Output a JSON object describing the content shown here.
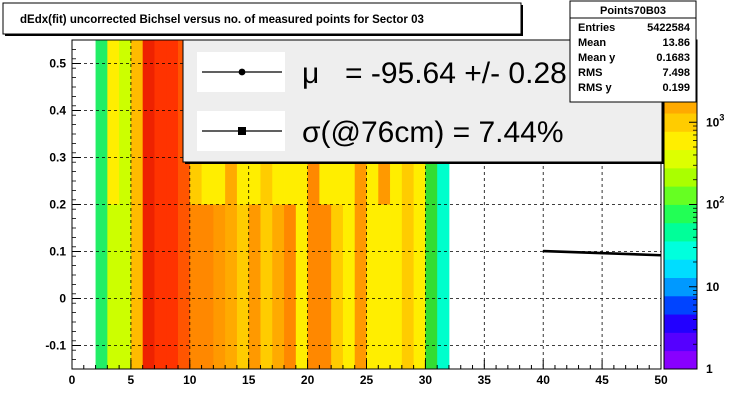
{
  "title": "dEdx(fit) uncorrected Bichsel versus no. of measured points for Sector 03",
  "stats": {
    "name": "Points70B03",
    "rows": [
      {
        "label": "Entries",
        "value": "5422584"
      },
      {
        "label": "Mean",
        "value": "13.86"
      },
      {
        "label": "Mean y",
        "value": "0.1683"
      },
      {
        "label": "RMS",
        "value": "7.498"
      },
      {
        "label": "RMS y",
        "value": "0.199"
      }
    ]
  },
  "legend": {
    "mu_symbol": "μ",
    "mu_text": "= -95.64 +/-  0.28 %",
    "sigma_text": "σ(@76cm) =  7.44%"
  },
  "chart_data": {
    "type": "heatmap",
    "title": "dEdx(fit) uncorrected Bichsel versus no. of measured points for Sector 03",
    "xlabel": "",
    "ylabel": "",
    "xlim": [
      0,
      50
    ],
    "ylim": [
      -0.15,
      0.55
    ],
    "x_ticks": [
      0,
      5,
      10,
      15,
      20,
      25,
      30,
      35,
      40,
      45,
      50
    ],
    "y_ticks": [
      -0.1,
      0,
      0.1,
      0.2,
      0.3,
      0.4,
      0.5
    ],
    "grid": true,
    "z_scale": "log",
    "z_ticks": [
      {
        "base": "1",
        "exp": ""
      },
      {
        "base": "10",
        "exp": ""
      },
      {
        "base": "10",
        "exp": "2"
      },
      {
        "base": "10",
        "exp": "3"
      }
    ],
    "z_range": [
      1,
      10000
    ],
    "x_bin_width": 1,
    "columns": [
      {
        "x": 2,
        "colors": [
          "#22ee66"
        ]
      },
      {
        "x": 3,
        "colors": [
          "#ffee00",
          "#ccff00"
        ]
      },
      {
        "x": 4,
        "colors": [
          "#ccff00"
        ]
      },
      {
        "x": 5,
        "colors": [
          "#ffbb00"
        ]
      },
      {
        "x": 6,
        "colors": [
          "#ee2200"
        ]
      },
      {
        "x": 7,
        "colors": [
          "#ff3300"
        ]
      },
      {
        "x": 8,
        "colors": [
          "#ff3300"
        ]
      },
      {
        "x": 9,
        "colors": [
          "#ff5500"
        ]
      },
      {
        "x": 10,
        "colors": [
          "#ffcc00",
          "#ff8800"
        ]
      },
      {
        "x": 11,
        "colors": [
          "#ffee00",
          "#ff8800"
        ]
      },
      {
        "x": 12,
        "colors": [
          "#ffee00",
          "#ff9900"
        ]
      },
      {
        "x": 13,
        "colors": [
          "#ffaa00"
        ]
      },
      {
        "x": 14,
        "colors": [
          "#ffee00",
          "#ffcc00"
        ]
      },
      {
        "x": 15,
        "colors": [
          "#ffee00",
          "#ff9900"
        ]
      },
      {
        "x": 16,
        "colors": [
          "#ffcc00"
        ]
      },
      {
        "x": 17,
        "colors": [
          "#ffee00",
          "#ffaa00"
        ]
      },
      {
        "x": 18,
        "colors": [
          "#ffee00",
          "#ff8800"
        ]
      },
      {
        "x": 19,
        "colors": [
          "#ffee00"
        ]
      },
      {
        "x": 20,
        "colors": [
          "#ff8800"
        ]
      },
      {
        "x": 21,
        "colors": [
          "#ffee00",
          "#ff8800"
        ]
      },
      {
        "x": 22,
        "colors": [
          "#ffee00",
          "#ffcc00"
        ]
      },
      {
        "x": 23,
        "colors": [
          "#ffee00"
        ]
      },
      {
        "x": 24,
        "colors": [
          "#ff9900"
        ]
      },
      {
        "x": 25,
        "colors": [
          "#ffee00"
        ]
      },
      {
        "x": 26,
        "colors": [
          "#ff9900",
          "#ffee00"
        ]
      },
      {
        "x": 27,
        "colors": [
          "#ffee00"
        ]
      },
      {
        "x": 28,
        "colors": [
          "#ffcc00"
        ]
      },
      {
        "x": 29,
        "colors": [
          "#ffee00"
        ]
      },
      {
        "x": 30,
        "colors": [
          "#33dd33"
        ]
      },
      {
        "x": 31,
        "colors": [
          "#00ffcc"
        ]
      }
    ],
    "profile_line": {
      "x_start": 40,
      "x_end": 50,
      "y_start": 0.101,
      "y_end": 0.092
    }
  }
}
